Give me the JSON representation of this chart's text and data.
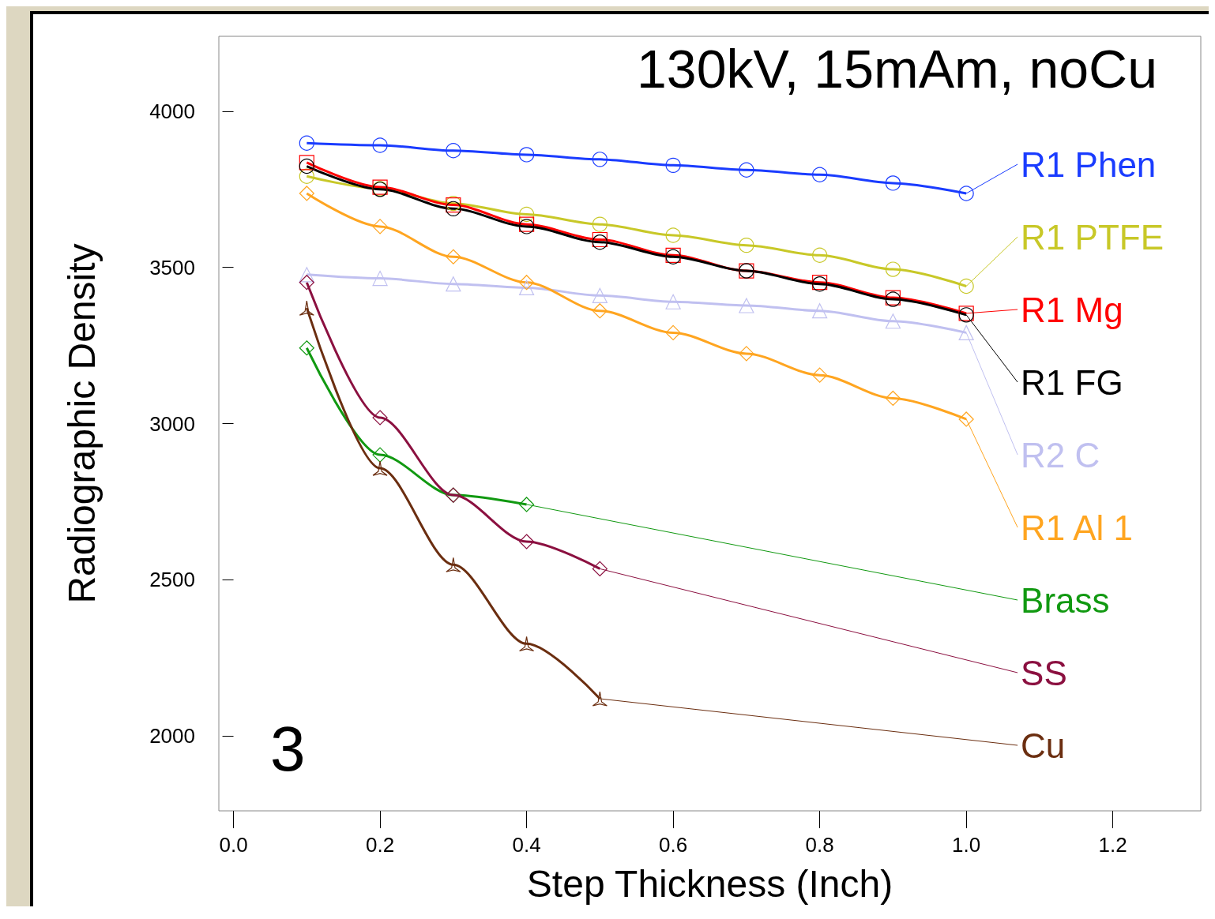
{
  "chart_data": {
    "type": "line",
    "title": "130kV, 15mAm, noCu",
    "xlabel": "Step Thickness (Inch)",
    "ylabel": "Radiographic Density",
    "annotations": [
      "3"
    ],
    "x": [
      0.1,
      0.2,
      0.3,
      0.4,
      0.5,
      0.6,
      0.7,
      0.8,
      0.9,
      1.0
    ],
    "series": [
      {
        "name": "R1 Phen",
        "color": "#1a3cff",
        "marker": "circle",
        "values": [
          3898,
          3891,
          3874,
          3861,
          3846,
          3827,
          3812,
          3797,
          3770,
          3737
        ]
      },
      {
        "name": "R1 PTFE",
        "color": "#c8c828",
        "marker": "circle",
        "values": [
          3792,
          3752,
          3705,
          3670,
          3638,
          3603,
          3571,
          3539,
          3494,
          3440
        ]
      },
      {
        "name": "R1 Mg",
        "color": "#ff0000",
        "marker": "square",
        "values": [
          3836,
          3757,
          3700,
          3638,
          3589,
          3539,
          3489,
          3452,
          3403,
          3353
        ]
      },
      {
        "name": "R1 FG",
        "color": "#000000",
        "marker": "circle",
        "values": [
          3824,
          3750,
          3688,
          3631,
          3581,
          3534,
          3489,
          3447,
          3398,
          3348
        ]
      },
      {
        "name": "R2 C",
        "color": "#c0c0f0",
        "marker": "triangle",
        "values": [
          3477,
          3465,
          3447,
          3435,
          3410,
          3390,
          3378,
          3361,
          3328,
          3291
        ]
      },
      {
        "name": "R1 Al 1",
        "color": "#ffa520",
        "marker": "diamond",
        "values": [
          3737,
          3631,
          3534,
          3452,
          3361,
          3291,
          3224,
          3155,
          3081,
          3014
        ]
      },
      {
        "name": "Brass",
        "color": "#119911",
        "marker": "diamond",
        "values": [
          3242,
          2900,
          2771,
          2741,
          null,
          null,
          null,
          null,
          null,
          null
        ]
      },
      {
        "name": "SS",
        "color": "#8b1040",
        "marker": "diamond",
        "values": [
          3452,
          3019,
          2771,
          2622,
          2535,
          null,
          null,
          null,
          null,
          null
        ]
      },
      {
        "name": "Cu",
        "color": "#6b2e10",
        "marker": "star",
        "values": [
          3370,
          2857,
          2548,
          2295,
          2119,
          null,
          null,
          null,
          null,
          null
        ]
      }
    ],
    "xlim": [
      -0.02,
      1.32
    ],
    "ylim": [
      1760,
      4240
    ],
    "xticks": [
      {
        "value": 0,
        "label": "0.0"
      },
      0.2,
      0.4,
      0.6,
      0.8,
      {
        "value": 1,
        "label": "1.0"
      },
      1.2
    ],
    "yticks": [
      2000,
      2500,
      3000,
      3500,
      4000
    ],
    "grid": false,
    "legend": "right"
  }
}
